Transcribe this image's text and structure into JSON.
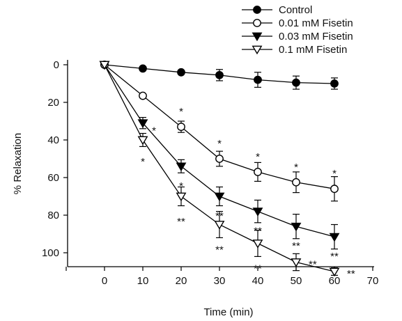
{
  "chart_data": {
    "type": "line",
    "xlabel": "Time (min)",
    "ylabel": "% Relaxation",
    "xlim": [
      -10,
      70
    ],
    "ylim": [
      0,
      110
    ],
    "y_inverted": true,
    "xticks": [
      0,
      10,
      20,
      30,
      40,
      50,
      60,
      70
    ],
    "yticks": [
      0,
      20,
      40,
      60,
      80,
      100
    ],
    "x": [
      0,
      10,
      20,
      30,
      40,
      50,
      60
    ],
    "grid": false,
    "legend_position": "top-right",
    "series": [
      {
        "name": "Control",
        "marker": "filled-circle",
        "values": [
          0,
          2,
          4,
          5.5,
          8,
          9.5,
          10
        ],
        "errors": [
          0,
          0,
          0,
          3,
          4,
          3.5,
          3
        ],
        "sig": [
          "",
          "",
          "",
          "",
          "",
          "",
          ""
        ]
      },
      {
        "name": "0.01 mM Fisetin",
        "marker": "open-circle",
        "values": [
          0,
          16.5,
          33,
          50,
          57,
          62.5,
          66
        ],
        "errors": [
          0,
          0,
          3,
          4,
          5,
          5.5,
          6.5
        ],
        "sig": [
          "",
          "",
          "*",
          "*",
          "*",
          "*",
          "*"
        ]
      },
      {
        "name": "0.03 mM Fisetin",
        "marker": "filled-triangle-down",
        "values": [
          0,
          31,
          54,
          70,
          78,
          86,
          91.5
        ],
        "errors": [
          0,
          3,
          3.5,
          5,
          6,
          6.5,
          6.5
        ],
        "sig": [
          "",
          "*",
          "*",
          "**",
          "**",
          "**",
          "**"
        ]
      },
      {
        "name": "0.1 mM Fisetin",
        "marker": "open-triangle-down",
        "values": [
          0,
          40,
          70,
          85,
          95,
          105,
          110
        ],
        "errors": [
          0,
          3.5,
          5,
          7,
          7,
          4.5,
          2
        ],
        "sig": [
          "",
          "*",
          "**",
          "**",
          "**",
          "**",
          "**"
        ]
      }
    ]
  }
}
